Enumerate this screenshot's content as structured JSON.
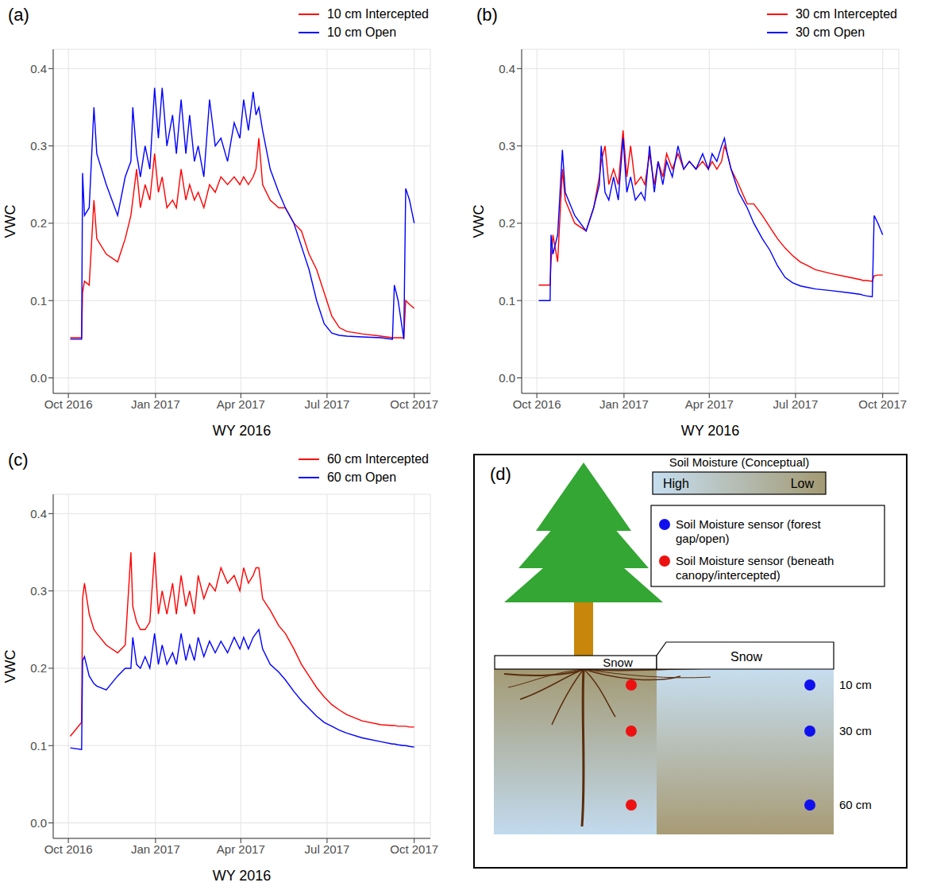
{
  "chart_data": [
    {
      "type": "line",
      "title": "(a)",
      "x_label": "WY 2016",
      "y_label": "VWC",
      "grid": true,
      "legend": "top right",
      "xlim": [
        -16,
        382
      ],
      "ylim": [
        -0.02,
        0.425
      ],
      "xticks": [
        {
          "value": 0,
          "label": "Oct 2016"
        },
        {
          "value": 92,
          "label": "Jan 2017"
        },
        {
          "value": 182,
          "label": "Apr 2017"
        },
        {
          "value": 273,
          "label": "Jul 2017"
        },
        {
          "value": 365,
          "label": "Oct 2017"
        }
      ],
      "yticks": [
        {
          "value": 0,
          "label": "0.0"
        },
        0.1,
        0.2,
        0.3,
        0.4
      ],
      "x": [
        2,
        14,
        15,
        17,
        22,
        27,
        30,
        40,
        52,
        60,
        66,
        68,
        72,
        76,
        81,
        86,
        91,
        95,
        99,
        104,
        110,
        114,
        119,
        124,
        128,
        133,
        137,
        143,
        149,
        155,
        161,
        168,
        175,
        181,
        185,
        190,
        195,
        198,
        201,
        205,
        213,
        222,
        229,
        238,
        246,
        254,
        262,
        270,
        278,
        286,
        294,
        310,
        330,
        342,
        344,
        348,
        354,
        356,
        360,
        365
      ],
      "series": [
        {
          "name": "10 cm Intercepted",
          "color": "#ff0000",
          "line_style": "solid",
          "values": [
            0.052,
            0.052,
            0.11,
            0.125,
            0.12,
            0.23,
            0.18,
            0.16,
            0.15,
            0.18,
            0.21,
            0.23,
            0.27,
            0.22,
            0.25,
            0.23,
            0.29,
            0.24,
            0.26,
            0.22,
            0.23,
            0.22,
            0.27,
            0.23,
            0.25,
            0.23,
            0.24,
            0.22,
            0.25,
            0.24,
            0.26,
            0.25,
            0.26,
            0.25,
            0.26,
            0.25,
            0.26,
            0.27,
            0.31,
            0.25,
            0.23,
            0.22,
            0.22,
            0.2,
            0.19,
            0.16,
            0.14,
            0.11,
            0.08,
            0.065,
            0.06,
            0.057,
            0.054,
            0.052,
            0.052,
            0.052,
            0.052,
            0.1,
            0.095,
            0.09
          ]
        },
        {
          "name": "10 cm Open",
          "color": "#0000ff",
          "line_style": "solid",
          "values": [
            0.05,
            0.05,
            0.265,
            0.21,
            0.22,
            0.35,
            0.29,
            0.25,
            0.21,
            0.26,
            0.28,
            0.35,
            0.29,
            0.26,
            0.3,
            0.27,
            0.375,
            0.31,
            0.375,
            0.3,
            0.34,
            0.29,
            0.36,
            0.29,
            0.34,
            0.28,
            0.3,
            0.26,
            0.36,
            0.3,
            0.31,
            0.28,
            0.33,
            0.31,
            0.36,
            0.32,
            0.37,
            0.34,
            0.35,
            0.32,
            0.27,
            0.24,
            0.22,
            0.2,
            0.17,
            0.14,
            0.1,
            0.07,
            0.058,
            0.055,
            0.054,
            0.053,
            0.052,
            0.05,
            0.12,
            0.1,
            0.05,
            0.245,
            0.23,
            0.2
          ]
        }
      ]
    },
    {
      "type": "line",
      "title": "(b)",
      "x_label": "WY 2016",
      "y_label": "VWC",
      "grid": true,
      "legend": "top right",
      "xlim": [
        -16,
        382
      ],
      "ylim": [
        -0.02,
        0.425
      ],
      "xticks": [
        {
          "value": 0,
          "label": "Oct 2016"
        },
        {
          "value": 92,
          "label": "Jan 2017"
        },
        {
          "value": 182,
          "label": "Apr 2017"
        },
        {
          "value": 273,
          "label": "Jul 2017"
        },
        {
          "value": 365,
          "label": "Oct 2017"
        }
      ],
      "yticks": [
        {
          "value": 0,
          "label": "0.0"
        },
        0.1,
        0.2,
        0.3,
        0.4
      ],
      "x": [
        2,
        14,
        15,
        17,
        22,
        27,
        30,
        40,
        52,
        60,
        66,
        68,
        72,
        76,
        81,
        86,
        91,
        95,
        99,
        104,
        110,
        114,
        119,
        124,
        128,
        133,
        137,
        143,
        149,
        155,
        161,
        168,
        175,
        181,
        185,
        190,
        195,
        198,
        201,
        205,
        213,
        222,
        229,
        238,
        246,
        254,
        262,
        270,
        278,
        286,
        294,
        310,
        330,
        342,
        344,
        348,
        354,
        356,
        360,
        365
      ],
      "series": [
        {
          "name": "30 cm Intercepted",
          "color": "#ff0000",
          "line_style": "solid",
          "values": [
            0.12,
            0.12,
            0.15,
            0.185,
            0.15,
            0.27,
            0.23,
            0.2,
            0.19,
            0.22,
            0.26,
            0.28,
            0.3,
            0.25,
            0.27,
            0.25,
            0.32,
            0.26,
            0.3,
            0.25,
            0.26,
            0.25,
            0.29,
            0.25,
            0.28,
            0.26,
            0.29,
            0.27,
            0.29,
            0.27,
            0.28,
            0.27,
            0.28,
            0.27,
            0.28,
            0.27,
            0.28,
            0.3,
            0.29,
            0.27,
            0.25,
            0.225,
            0.225,
            0.21,
            0.195,
            0.18,
            0.168,
            0.158,
            0.15,
            0.145,
            0.14,
            0.135,
            0.13,
            0.127,
            0.126,
            0.126,
            0.125,
            0.132,
            0.133,
            0.133
          ]
        },
        {
          "name": "30 cm Open",
          "color": "#0000ff",
          "line_style": "solid",
          "values": [
            0.1,
            0.1,
            0.185,
            0.16,
            0.185,
            0.295,
            0.24,
            0.21,
            0.19,
            0.22,
            0.25,
            0.3,
            0.24,
            0.23,
            0.26,
            0.23,
            0.31,
            0.24,
            0.26,
            0.23,
            0.24,
            0.23,
            0.3,
            0.24,
            0.28,
            0.25,
            0.28,
            0.26,
            0.3,
            0.27,
            0.28,
            0.27,
            0.29,
            0.27,
            0.29,
            0.28,
            0.3,
            0.31,
            0.29,
            0.27,
            0.24,
            0.22,
            0.2,
            0.18,
            0.165,
            0.145,
            0.13,
            0.123,
            0.119,
            0.117,
            0.115,
            0.113,
            0.11,
            0.108,
            0.107,
            0.106,
            0.105,
            0.21,
            0.2,
            0.185
          ]
        }
      ]
    },
    {
      "type": "line",
      "title": "(c)",
      "x_label": "WY 2016",
      "y_label": "VWC",
      "grid": true,
      "legend": "top right",
      "xlim": [
        -16,
        382
      ],
      "ylim": [
        -0.02,
        0.425
      ],
      "xticks": [
        {
          "value": 0,
          "label": "Oct 2016"
        },
        {
          "value": 92,
          "label": "Jan 2017"
        },
        {
          "value": 182,
          "label": "Apr 2017"
        },
        {
          "value": 273,
          "label": "Jul 2017"
        },
        {
          "value": 365,
          "label": "Oct 2017"
        }
      ],
      "yticks": [
        {
          "value": 0,
          "label": "0.0"
        },
        0.1,
        0.2,
        0.3,
        0.4
      ],
      "x": [
        2,
        14,
        15,
        17,
        22,
        27,
        30,
        40,
        52,
        60,
        66,
        68,
        72,
        76,
        81,
        86,
        91,
        95,
        99,
        104,
        110,
        114,
        119,
        124,
        128,
        133,
        137,
        143,
        149,
        155,
        161,
        168,
        175,
        181,
        185,
        190,
        195,
        198,
        201,
        205,
        213,
        222,
        229,
        238,
        246,
        254,
        262,
        270,
        278,
        286,
        294,
        310,
        330,
        342,
        344,
        348,
        354,
        356,
        360,
        365
      ],
      "series": [
        {
          "name": "60 cm Intercepted",
          "color": "#ff0000",
          "line_style": "solid",
          "values": [
            0.112,
            0.13,
            0.29,
            0.31,
            0.27,
            0.25,
            0.245,
            0.23,
            0.22,
            0.23,
            0.35,
            0.28,
            0.26,
            0.25,
            0.25,
            0.26,
            0.35,
            0.27,
            0.3,
            0.27,
            0.31,
            0.27,
            0.32,
            0.28,
            0.3,
            0.27,
            0.32,
            0.29,
            0.31,
            0.3,
            0.33,
            0.31,
            0.32,
            0.3,
            0.33,
            0.31,
            0.32,
            0.33,
            0.33,
            0.29,
            0.275,
            0.255,
            0.245,
            0.225,
            0.205,
            0.19,
            0.175,
            0.163,
            0.153,
            0.146,
            0.14,
            0.132,
            0.127,
            0.126,
            0.126,
            0.125,
            0.125,
            0.125,
            0.124,
            0.124
          ]
        },
        {
          "name": "60 cm Open",
          "color": "#0000ff",
          "line_style": "solid",
          "values": [
            0.097,
            0.095,
            0.21,
            0.215,
            0.19,
            0.18,
            0.177,
            0.172,
            0.19,
            0.2,
            0.2,
            0.24,
            0.205,
            0.2,
            0.215,
            0.2,
            0.245,
            0.205,
            0.23,
            0.205,
            0.22,
            0.205,
            0.245,
            0.21,
            0.23,
            0.21,
            0.24,
            0.215,
            0.235,
            0.22,
            0.235,
            0.22,
            0.24,
            0.225,
            0.24,
            0.225,
            0.24,
            0.245,
            0.25,
            0.225,
            0.205,
            0.195,
            0.185,
            0.17,
            0.158,
            0.148,
            0.138,
            0.13,
            0.125,
            0.12,
            0.116,
            0.11,
            0.105,
            0.102,
            0.102,
            0.101,
            0.1,
            0.1,
            0.099,
            0.098
          ]
        }
      ]
    }
  ],
  "diagram": {
    "title": "(d)",
    "colorbar": {
      "title": "Soil Moisture (Conceptual)",
      "high": "High",
      "low": "Low"
    },
    "legend": [
      {
        "label": "Soil Moisture sensor (forest gap/open)",
        "color": "#1010ee"
      },
      {
        "label": "Soil Moisture sensor (beneath canopy/intercepted)",
        "color": "#ee1111"
      }
    ],
    "snow": [
      "Snow",
      "Snow"
    ],
    "depths": [
      "10 cm",
      "30 cm",
      "60 cm"
    ]
  }
}
